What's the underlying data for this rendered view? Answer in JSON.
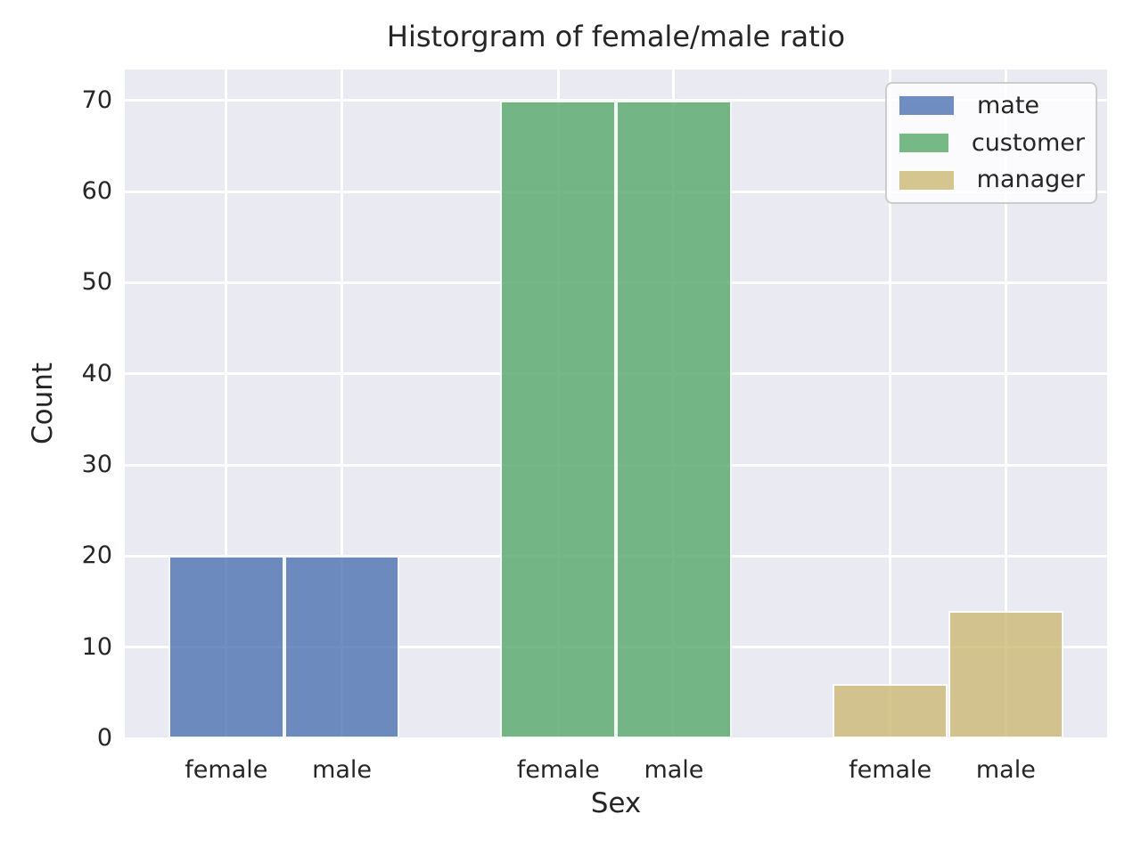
{
  "chart_data": {
    "type": "bar",
    "title": "Historgram of female/male ratio",
    "xlabel": "Sex",
    "ylabel": "Count",
    "ylim": [
      0,
      73.4
    ],
    "yticks": [
      0,
      10,
      20,
      30,
      40,
      50,
      60,
      70
    ],
    "categories": [
      "female",
      "male",
      "female",
      "male",
      "female",
      "male"
    ],
    "series": [
      {
        "name": "mate",
        "color": "#4C72B0",
        "bar_labels": [
          "female",
          "male"
        ],
        "values": [
          20,
          20
        ]
      },
      {
        "name": "customer",
        "color": "#55A868",
        "bar_labels": [
          "female",
          "male"
        ],
        "values": [
          70,
          70
        ]
      },
      {
        "name": "manager",
        "color": "#CCB974",
        "bar_labels": [
          "female",
          "male"
        ],
        "values": [
          6,
          14
        ]
      }
    ],
    "legend": {
      "position": "upper right",
      "entries": [
        "mate",
        "customer",
        "manager"
      ]
    },
    "style": {
      "plot_bg": "#eaeaf2",
      "grid_color": "#ffffff",
      "text_color": "#262626",
      "bar_alpha": 0.8,
      "grid": "on"
    }
  }
}
